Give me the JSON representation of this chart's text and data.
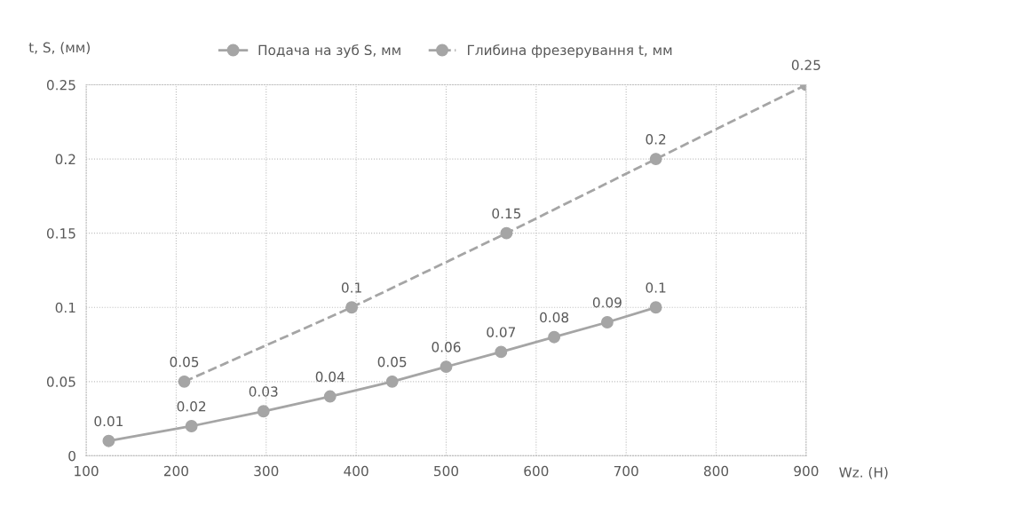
{
  "chart_data": {
    "type": "line",
    "ylabel": "t, S, (мм)",
    "xlabel": "Wz. (Н)",
    "xlim": [
      100,
      900
    ],
    "xticks": [
      100,
      200,
      300,
      400,
      500,
      600,
      700,
      800,
      900
    ],
    "ylim": [
      0,
      0.25
    ],
    "yticks": [
      0,
      0.05,
      0.1,
      0.15,
      0.2,
      0.25
    ],
    "grid": true,
    "legend": "top",
    "marker": "circle",
    "data_labels": true,
    "series": [
      {
        "name": "Подача на зуб S, мм",
        "color": "#a5a5a5",
        "line_style": "solid",
        "x": [
          125,
          217,
          297,
          371,
          440,
          500,
          561,
          620,
          679,
          733
        ],
        "values": [
          0.01,
          0.02,
          0.03,
          0.04,
          0.05,
          0.06,
          0.07,
          0.08,
          0.09,
          0.1
        ]
      },
      {
        "name": "Глибина фрезерування t, мм",
        "color": "#a5a5a5",
        "line_style": "dashed",
        "x": [
          209,
          395,
          567,
          733,
          900
        ],
        "values": [
          0.05,
          0.1,
          0.15,
          0.2,
          0.25
        ]
      }
    ]
  }
}
